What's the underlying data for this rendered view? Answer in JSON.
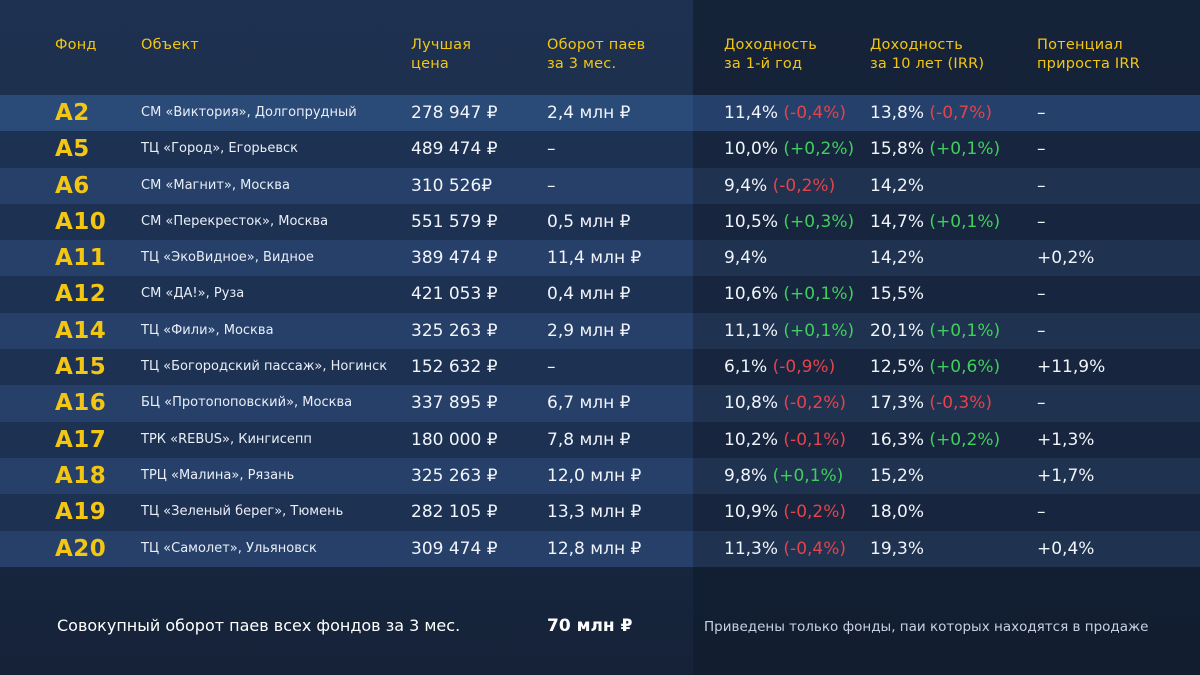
{
  "colors": {
    "accent": "#f3c614",
    "negative": "#e4434b",
    "positive": "#3fcf5c"
  },
  "headers": {
    "fund": "Фонд",
    "object": "Объект",
    "best_price_1": "Лучшая",
    "best_price_2": "цена",
    "turnover_1": "Оборот паев",
    "turnover_2": "за 3 мес.",
    "yield1_1": "Доходность",
    "yield1_2": "за 1-й год",
    "yield10_1": "Доходность",
    "yield10_2": "за 10 лет (IRR)",
    "potential_1": "Потенциал",
    "potential_2": "прироста IRR"
  },
  "rows": [
    {
      "fund": "A2",
      "object": "СМ «Виктория», Долгопрудный",
      "price": "278 947 ₽",
      "turnover": "2,4 млн ₽",
      "y1": "11,4%",
      "y1_delta": "(-0,4%)",
      "y1_sign": "neg",
      "y10": "13,8%",
      "y10_delta": "(-0,7%)",
      "y10_sign": "neg",
      "potential": "–"
    },
    {
      "fund": "A5",
      "object": "ТЦ «Город», Егорьевск",
      "price": "489 474 ₽",
      "turnover": "–",
      "y1": "10,0%",
      "y1_delta": "(+0,2%)",
      "y1_sign": "pos",
      "y10": "15,8%",
      "y10_delta": "(+0,1%)",
      "y10_sign": "pos",
      "potential": "–"
    },
    {
      "fund": "A6",
      "object": "СМ «Магнит», Москва",
      "price": "310 526₽",
      "turnover": "–",
      "y1": "9,4%",
      "y1_delta": "(-0,2%)",
      "y1_sign": "neg",
      "y10": "14,2%",
      "y10_delta": "",
      "y10_sign": "",
      "potential": "–"
    },
    {
      "fund": "A10",
      "object": "СМ «Перекресток», Москва",
      "price": "551 579 ₽",
      "turnover": "0,5 млн ₽",
      "y1": "10,5%",
      "y1_delta": "(+0,3%)",
      "y1_sign": "pos",
      "y10": "14,7%",
      "y10_delta": "(+0,1%)",
      "y10_sign": "pos",
      "potential": "–"
    },
    {
      "fund": "A11",
      "object": "ТЦ «ЭкоВидное», Видное",
      "price": "389 474 ₽",
      "turnover": "11,4 млн ₽",
      "y1": "9,4%",
      "y1_delta": "",
      "y1_sign": "",
      "y10": "14,2%",
      "y10_delta": "",
      "y10_sign": "",
      "potential": "+0,2%"
    },
    {
      "fund": "A12",
      "object": "СМ «ДА!», Руза",
      "price": "421 053 ₽",
      "turnover": "0,4 млн ₽",
      "y1": "10,6%",
      "y1_delta": "(+0,1%)",
      "y1_sign": "pos",
      "y10": "15,5%",
      "y10_delta": "",
      "y10_sign": "",
      "potential": "–"
    },
    {
      "fund": "A14",
      "object": "ТЦ «Фили», Москва",
      "price": "325 263 ₽",
      "turnover": "2,9 млн ₽",
      "y1": "11,1%",
      "y1_delta": "(+0,1%)",
      "y1_sign": "pos",
      "y10": "20,1%",
      "y10_delta": "(+0,1%)",
      "y10_sign": "pos",
      "potential": "–"
    },
    {
      "fund": "A15",
      "object": "ТЦ «Богородский пассаж», Ногинск",
      "price": "152 632 ₽",
      "turnover": "–",
      "y1": "6,1%",
      "y1_delta": "(-0,9%)",
      "y1_sign": "neg",
      "y10": "12,5%",
      "y10_delta": " (+0,6%)",
      "y10_sign": "pos",
      "potential": "+11,9%"
    },
    {
      "fund": "A16",
      "object": "БЦ «Протопоповский», Москва",
      "price": "337 895 ₽",
      "turnover": "6,7 млн ₽",
      "y1": "10,8%",
      "y1_delta": "(-0,2%)",
      "y1_sign": "neg",
      "y10": "17,3%",
      "y10_delta": "(-0,3%)",
      "y10_sign": "neg",
      "potential": "–"
    },
    {
      "fund": "A17",
      "object": "ТРК «REBUS», Кингисепп",
      "price": "180 000 ₽",
      "turnover": "7,8 млн ₽",
      "y1": "10,2%",
      "y1_delta": "(-0,1%)",
      "y1_sign": "neg",
      "y10": "16,3%",
      "y10_delta": "(+0,2%)",
      "y10_sign": "pos",
      "potential": "+1,3%"
    },
    {
      "fund": "A18",
      "object": "ТРЦ «Малина», Рязань",
      "price": "325 263 ₽",
      "turnover": "12,0 млн ₽",
      "y1": "9,8%",
      "y1_delta": "(+0,1%)",
      "y1_sign": "pos",
      "y10": "15,2%",
      "y10_delta": "",
      "y10_sign": "",
      "potential": "+1,7%"
    },
    {
      "fund": "A19",
      "object": "ТЦ «Зеленый берег», Тюмень",
      "price": "282 105 ₽",
      "turnover": "13,3 млн ₽",
      "y1": "10,9%",
      "y1_delta": "(-0,2%)",
      "y1_sign": "neg",
      "y10": "18,0%",
      "y10_delta": "",
      "y10_sign": "",
      "potential": "–"
    },
    {
      "fund": "A20",
      "object": "ТЦ «Самолет», Ульяновск",
      "price": "309 474 ₽",
      "turnover": "12,8 млн ₽",
      "y1": "11,3%",
      "y1_delta": "(-0,4%)",
      "y1_sign": "neg",
      "y10": "19,3%",
      "y10_delta": "",
      "y10_sign": "",
      "potential": "+0,4%"
    }
  ],
  "footer": {
    "total_label": "Совокупный оборот паев всех фондов за 3 мес.",
    "total_value": "70 млн ₽",
    "note": "Приведены только фонды, паи которых находятся в продаже"
  }
}
